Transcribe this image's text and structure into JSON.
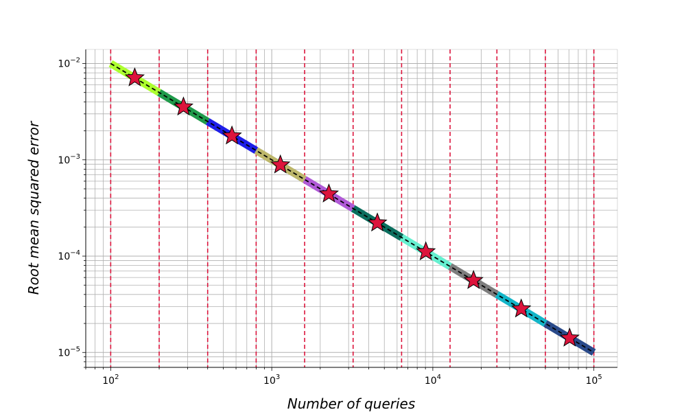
{
  "chart_data": {
    "type": "line",
    "title": "",
    "xlabel": "Number of queries",
    "ylabel": "Root mean squared error",
    "xscale": "log",
    "yscale": "log",
    "xlim": [
      70,
      140000
    ],
    "ylim": [
      7e-06,
      0.014
    ],
    "grid": "on (major and minor)",
    "legend": "none",
    "x_ticks": [
      {
        "value": 100,
        "base": "10",
        "exp": "2"
      },
      {
        "value": 1000,
        "base": "10",
        "exp": "3"
      },
      {
        "value": 10000,
        "base": "10",
        "exp": "4"
      },
      {
        "value": 100000,
        "base": "10",
        "exp": "5"
      }
    ],
    "y_ticks": [
      {
        "value": 0.01,
        "base": "10",
        "exp": "−2"
      },
      {
        "value": 0.001,
        "base": "10",
        "exp": "−3"
      },
      {
        "value": 0.0001,
        "base": "10",
        "exp": "−4"
      },
      {
        "value": 1e-05,
        "base": "10",
        "exp": "−5"
      }
    ],
    "reference_line": {
      "style": "dashed",
      "color": "#000000",
      "x": [
        100,
        100000
      ],
      "y": [
        0.01,
        1e-05
      ]
    },
    "vertical_lines": {
      "style": "dashed",
      "color": "#dc143c",
      "x": [
        100,
        200,
        400,
        800,
        1600,
        3200,
        6400,
        12800,
        25000,
        50000,
        100000
      ]
    },
    "segments": [
      {
        "x_start": 100,
        "x_end": 200,
        "color": "#adff2f"
      },
      {
        "x_start": 200,
        "x_end": 400,
        "color": "#1f9a4a"
      },
      {
        "x_start": 400,
        "x_end": 800,
        "color": "#1e1ee8"
      },
      {
        "x_start": 800,
        "x_end": 1600,
        "color": "#bdb76b"
      },
      {
        "x_start": 1600,
        "x_end": 3200,
        "color": "#b05ad6"
      },
      {
        "x_start": 3200,
        "x_end": 6400,
        "color": "#0b6e5e"
      },
      {
        "x_start": 6400,
        "x_end": 12800,
        "color": "#66f0d0"
      },
      {
        "x_start": 12800,
        "x_end": 25000,
        "color": "#7d7d7d"
      },
      {
        "x_start": 25000,
        "x_end": 50000,
        "color": "#12b5c8"
      },
      {
        "x_start": 50000,
        "x_end": 100000,
        "color": "#2a4a8a"
      }
    ],
    "markers": {
      "shape": "star",
      "fill": "#dc143c",
      "edge": "#000000",
      "points": [
        {
          "x": 141,
          "y": 0.0071
        },
        {
          "x": 283,
          "y": 0.00354
        },
        {
          "x": 566,
          "y": 0.00177
        },
        {
          "x": 1131,
          "y": 0.000885
        },
        {
          "x": 2263,
          "y": 0.000442
        },
        {
          "x": 4525,
          "y": 0.000221
        },
        {
          "x": 9051,
          "y": 0.000111
        },
        {
          "x": 17900,
          "y": 5.59e-05
        },
        {
          "x": 35400,
          "y": 2.83e-05
        },
        {
          "x": 70700,
          "y": 1.41e-05
        }
      ]
    }
  }
}
